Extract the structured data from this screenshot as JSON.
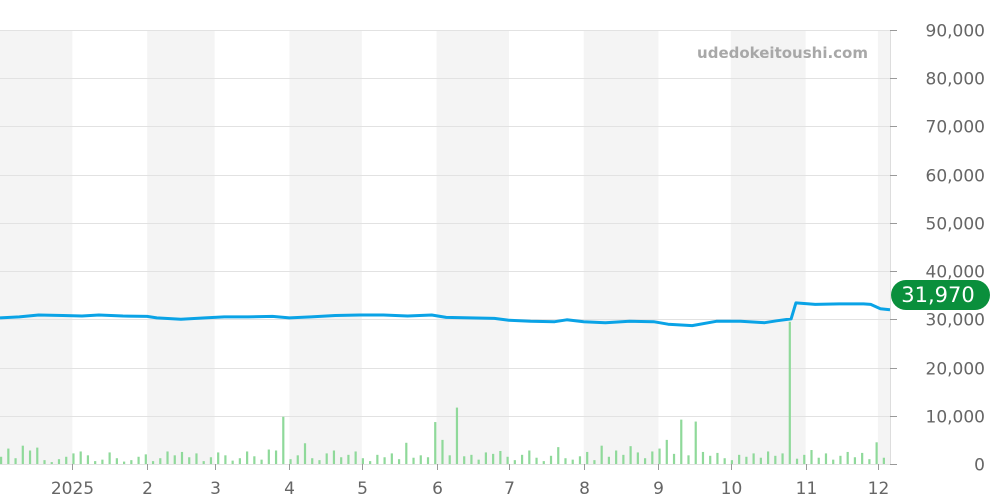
{
  "watermark": "udedokeitoushi.com",
  "chart_data": {
    "type": "line",
    "title": "",
    "xlabel": "",
    "ylabel": "",
    "xlim": [
      "2024-12-02",
      "2025-12-06"
    ],
    "ylim": [
      0,
      90000
    ],
    "grid": true,
    "y_axis_side": "right",
    "y_ticks": [
      "0",
      "10,000",
      "20,000",
      "30,000",
      "40,000",
      "50,000",
      "60,000",
      "70,000",
      "80,000",
      "90,000"
    ],
    "y_tick_values": [
      0,
      10000,
      20000,
      30000,
      40000,
      50000,
      60000,
      70000,
      80000,
      90000
    ],
    "x_ticks": [
      {
        "date": "2025-01-01",
        "label": "2025"
      },
      {
        "date": "2025-02-01",
        "label": "2"
      },
      {
        "date": "2025-03-01",
        "label": "3"
      },
      {
        "date": "2025-04-01",
        "label": "4"
      },
      {
        "date": "2025-05-01",
        "label": "5"
      },
      {
        "date": "2025-06-01",
        "label": "6"
      },
      {
        "date": "2025-07-01",
        "label": "7"
      },
      {
        "date": "2025-08-01",
        "label": "8"
      },
      {
        "date": "2025-09-01",
        "label": "9"
      },
      {
        "date": "2025-10-01",
        "label": "10"
      },
      {
        "date": "2025-11-01",
        "label": "11"
      },
      {
        "date": "2025-12-01",
        "label": "12"
      }
    ],
    "shaded_months": [
      [
        "2024-12-02",
        "2025-01-01"
      ],
      [
        "2025-02-01",
        "2025-03-01"
      ],
      [
        "2025-04-01",
        "2025-05-01"
      ],
      [
        "2025-06-01",
        "2025-07-01"
      ],
      [
        "2025-08-01",
        "2025-09-01"
      ],
      [
        "2025-10-01",
        "2025-11-01"
      ],
      [
        "2025-12-01",
        "2025-12-06"
      ]
    ],
    "colors": {
      "price": "#0aa3e6",
      "volume": "#8fd99a",
      "badge": "#0a8f3c",
      "shade": "#f4f4f4",
      "grid": "#e2e2e2"
    },
    "current_value_label": "31,970",
    "price_series": [
      [
        "2024-12-02",
        30300
      ],
      [
        "2024-12-10",
        30500
      ],
      [
        "2024-12-18",
        30900
      ],
      [
        "2024-12-28",
        30800
      ],
      [
        "2025-01-05",
        30700
      ],
      [
        "2025-01-12",
        30900
      ],
      [
        "2025-01-22",
        30700
      ],
      [
        "2025-02-01",
        30600
      ],
      [
        "2025-02-05",
        30300
      ],
      [
        "2025-02-15",
        30000
      ],
      [
        "2025-02-25",
        30300
      ],
      [
        "2025-03-05",
        30500
      ],
      [
        "2025-03-15",
        30500
      ],
      [
        "2025-03-25",
        30600
      ],
      [
        "2025-04-01",
        30300
      ],
      [
        "2025-04-10",
        30500
      ],
      [
        "2025-04-20",
        30800
      ],
      [
        "2025-04-30",
        30900
      ],
      [
        "2025-05-10",
        30900
      ],
      [
        "2025-05-20",
        30700
      ],
      [
        "2025-05-30",
        30900
      ],
      [
        "2025-06-05",
        30400
      ],
      [
        "2025-06-15",
        30300
      ],
      [
        "2025-06-25",
        30200
      ],
      [
        "2025-07-01",
        29800
      ],
      [
        "2025-07-10",
        29600
      ],
      [
        "2025-07-20",
        29500
      ],
      [
        "2025-07-25",
        29900
      ],
      [
        "2025-08-01",
        29500
      ],
      [
        "2025-08-10",
        29300
      ],
      [
        "2025-08-20",
        29600
      ],
      [
        "2025-08-30",
        29500
      ],
      [
        "2025-09-05",
        29000
      ],
      [
        "2025-09-15",
        28700
      ],
      [
        "2025-09-25",
        29600
      ],
      [
        "2025-10-05",
        29600
      ],
      [
        "2025-10-15",
        29300
      ],
      [
        "2025-10-20",
        29700
      ],
      [
        "2025-10-26",
        30100
      ],
      [
        "2025-10-28",
        33400
      ],
      [
        "2025-11-05",
        33100
      ],
      [
        "2025-11-15",
        33200
      ],
      [
        "2025-11-25",
        33200
      ],
      [
        "2025-11-28",
        33100
      ],
      [
        "2025-12-02",
        32200
      ],
      [
        "2025-12-06",
        31970
      ]
    ],
    "volume_start": "2024-12-02",
    "volume_interval_days": 3,
    "volume_values": [
      1500,
      3200,
      1200,
      3800,
      2800,
      3400,
      800,
      400,
      1000,
      1500,
      2200,
      2600,
      1800,
      600,
      900,
      2400,
      1200,
      500,
      800,
      1500,
      2000,
      600,
      1200,
      2600,
      1800,
      2500,
      1400,
      2200,
      600,
      1400,
      2400,
      1800,
      700,
      1200,
      2600,
      1600,
      900,
      3000,
      2800,
      9800,
      1000,
      1800,
      4300,
      1200,
      800,
      2200,
      2800,
      1400,
      1900,
      2600,
      1200,
      600,
      1900,
      1400,
      2200,
      1000,
      4400,
      1300,
      1800,
      1400,
      8700,
      5000,
      1800,
      11700,
      1600,
      1900,
      900,
      2400,
      2100,
      2700,
      1500,
      800,
      1900,
      2800,
      1300,
      600,
      1700,
      3500,
      1200,
      900,
      1600,
      2500,
      800,
      3800,
      1500,
      2800,
      1900,
      3700,
      2400,
      1200,
      2600,
      3200,
      5000,
      2100,
      9200,
      1800,
      8800,
      2500,
      1700,
      2300,
      1200,
      800,
      1900,
      1500,
      2200,
      1300,
      2600,
      1700,
      2200,
      29500,
      1100,
      1900,
      2900,
      1300,
      2200,
      900,
      1700,
      2500,
      1400,
      2300,
      1000,
      4500,
      1300
    ]
  }
}
